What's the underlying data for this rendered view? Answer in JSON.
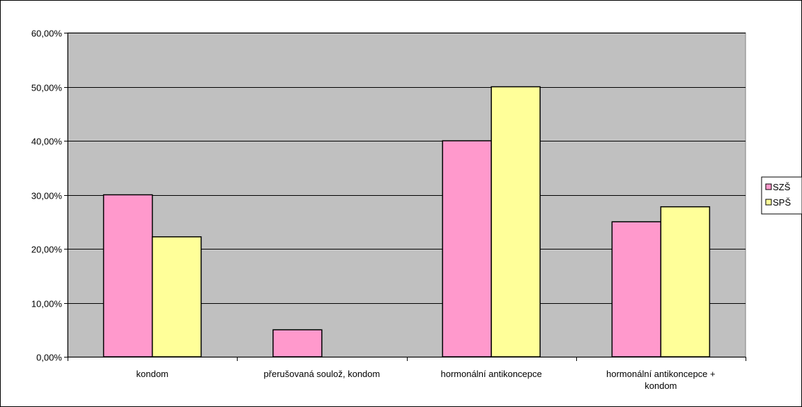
{
  "chart_data": {
    "type": "bar",
    "categories": [
      "kondom",
      "přerušovaná soulož, kondom",
      "hormonální antikoncepce",
      "hormonální antikoncepce + kondom"
    ],
    "series": [
      {
        "name": "SZŠ",
        "values": [
          30.0,
          5.0,
          40.0,
          25.0
        ],
        "color": "#ff99cc"
      },
      {
        "name": "SPŠ",
        "values": [
          22.22,
          0,
          50.0,
          27.78
        ],
        "color": "#ffff99"
      }
    ],
    "ylim": [
      0,
      60
    ],
    "yticks": [
      "0,00%",
      "10,00%",
      "20,00%",
      "30,00%",
      "40,00%",
      "50,00%",
      "60,00%"
    ],
    "grid": true,
    "plot_background": "#c0c0c0",
    "legend_position": "right"
  }
}
